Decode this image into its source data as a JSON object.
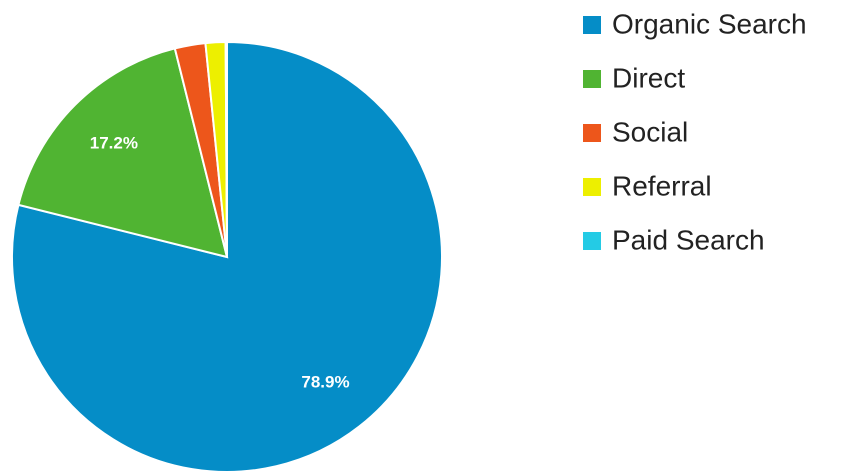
{
  "chart_data": {
    "type": "pie",
    "categories": [
      "Organic Search",
      "Direct",
      "Social",
      "Referral",
      "Paid Search"
    ],
    "values": [
      78.9,
      17.2,
      2.3,
      1.5,
      0.1
    ],
    "value_labels": [
      "78.9%",
      "17.2%",
      null,
      null,
      null
    ],
    "colors": [
      "#058dc7",
      "#50b432",
      "#ed561b",
      "#edef00",
      "#24cbe5"
    ],
    "legend": "right"
  }
}
